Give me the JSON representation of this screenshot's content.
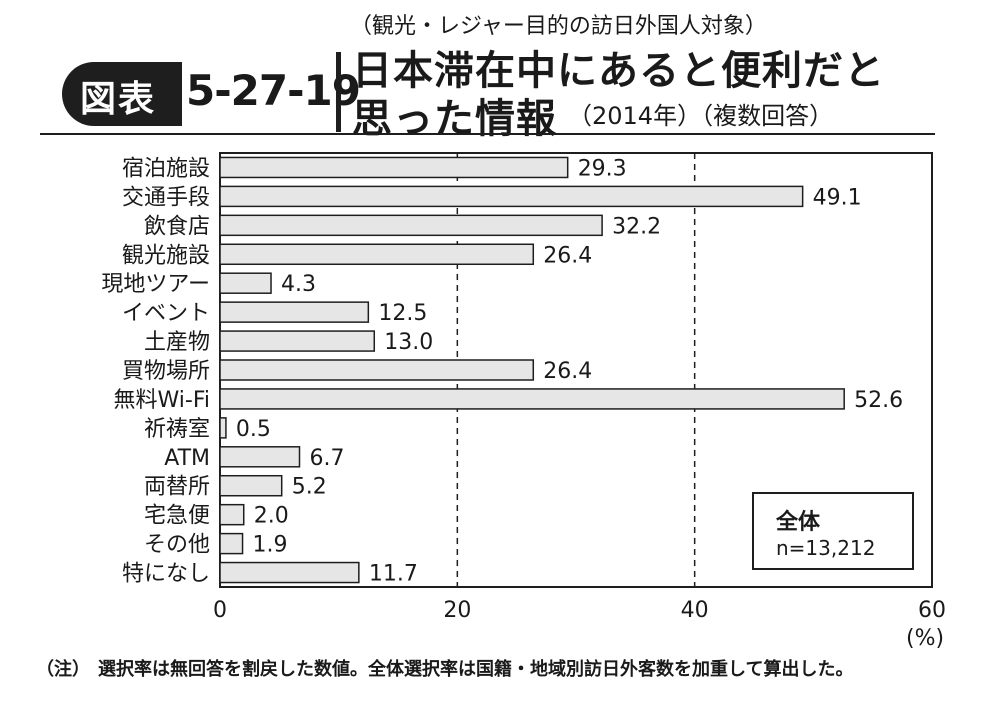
{
  "header": {
    "fig_label": "図表",
    "fig_number": "5-27-19",
    "subtitle": "（観光・レジャー目的の訪日外国人対象）",
    "title_line1": "日本滞在中にあると便利だと",
    "title_line2": "思った情報",
    "title_meta": "（2014年）（複数回答）"
  },
  "chart_data": {
    "type": "bar",
    "orientation": "horizontal",
    "categories": [
      "宿泊施設",
      "交通手段",
      "飲食店",
      "観光施設",
      "現地ツアー",
      "イベント",
      "土産物",
      "買物場所",
      "無料Wi-Fi",
      "祈祷室",
      "ATM",
      "両替所",
      "宅急便",
      "その他",
      "特になし"
    ],
    "values": [
      29.3,
      49.1,
      32.2,
      26.4,
      4.3,
      12.5,
      13.0,
      26.4,
      52.6,
      0.5,
      6.7,
      5.2,
      2.0,
      1.9,
      11.7
    ],
    "value_labels": [
      "29.3",
      "49.1",
      "32.2",
      "26.4",
      "4.3",
      "12.5",
      "13.0",
      "26.4",
      "52.6",
      "0.5",
      "6.7",
      "5.2",
      "2.0",
      "1.9",
      "11.7"
    ],
    "xlim": [
      0,
      60
    ],
    "xticks": [
      "0",
      "20",
      "40",
      "60"
    ],
    "xlabel": "(%)",
    "grid": "dashed vertical lines at 20 and 40",
    "bar_color": "#e6e6e6",
    "bar_stroke": "#1e1e1e"
  },
  "legend": {
    "title": "全体",
    "n": "n=13,212"
  },
  "note": {
    "tag": "（注）",
    "text": "選択率は無回答を割戻した数値。全体選択率は国籍・地域別訪日外客数を加重して算出した。"
  }
}
